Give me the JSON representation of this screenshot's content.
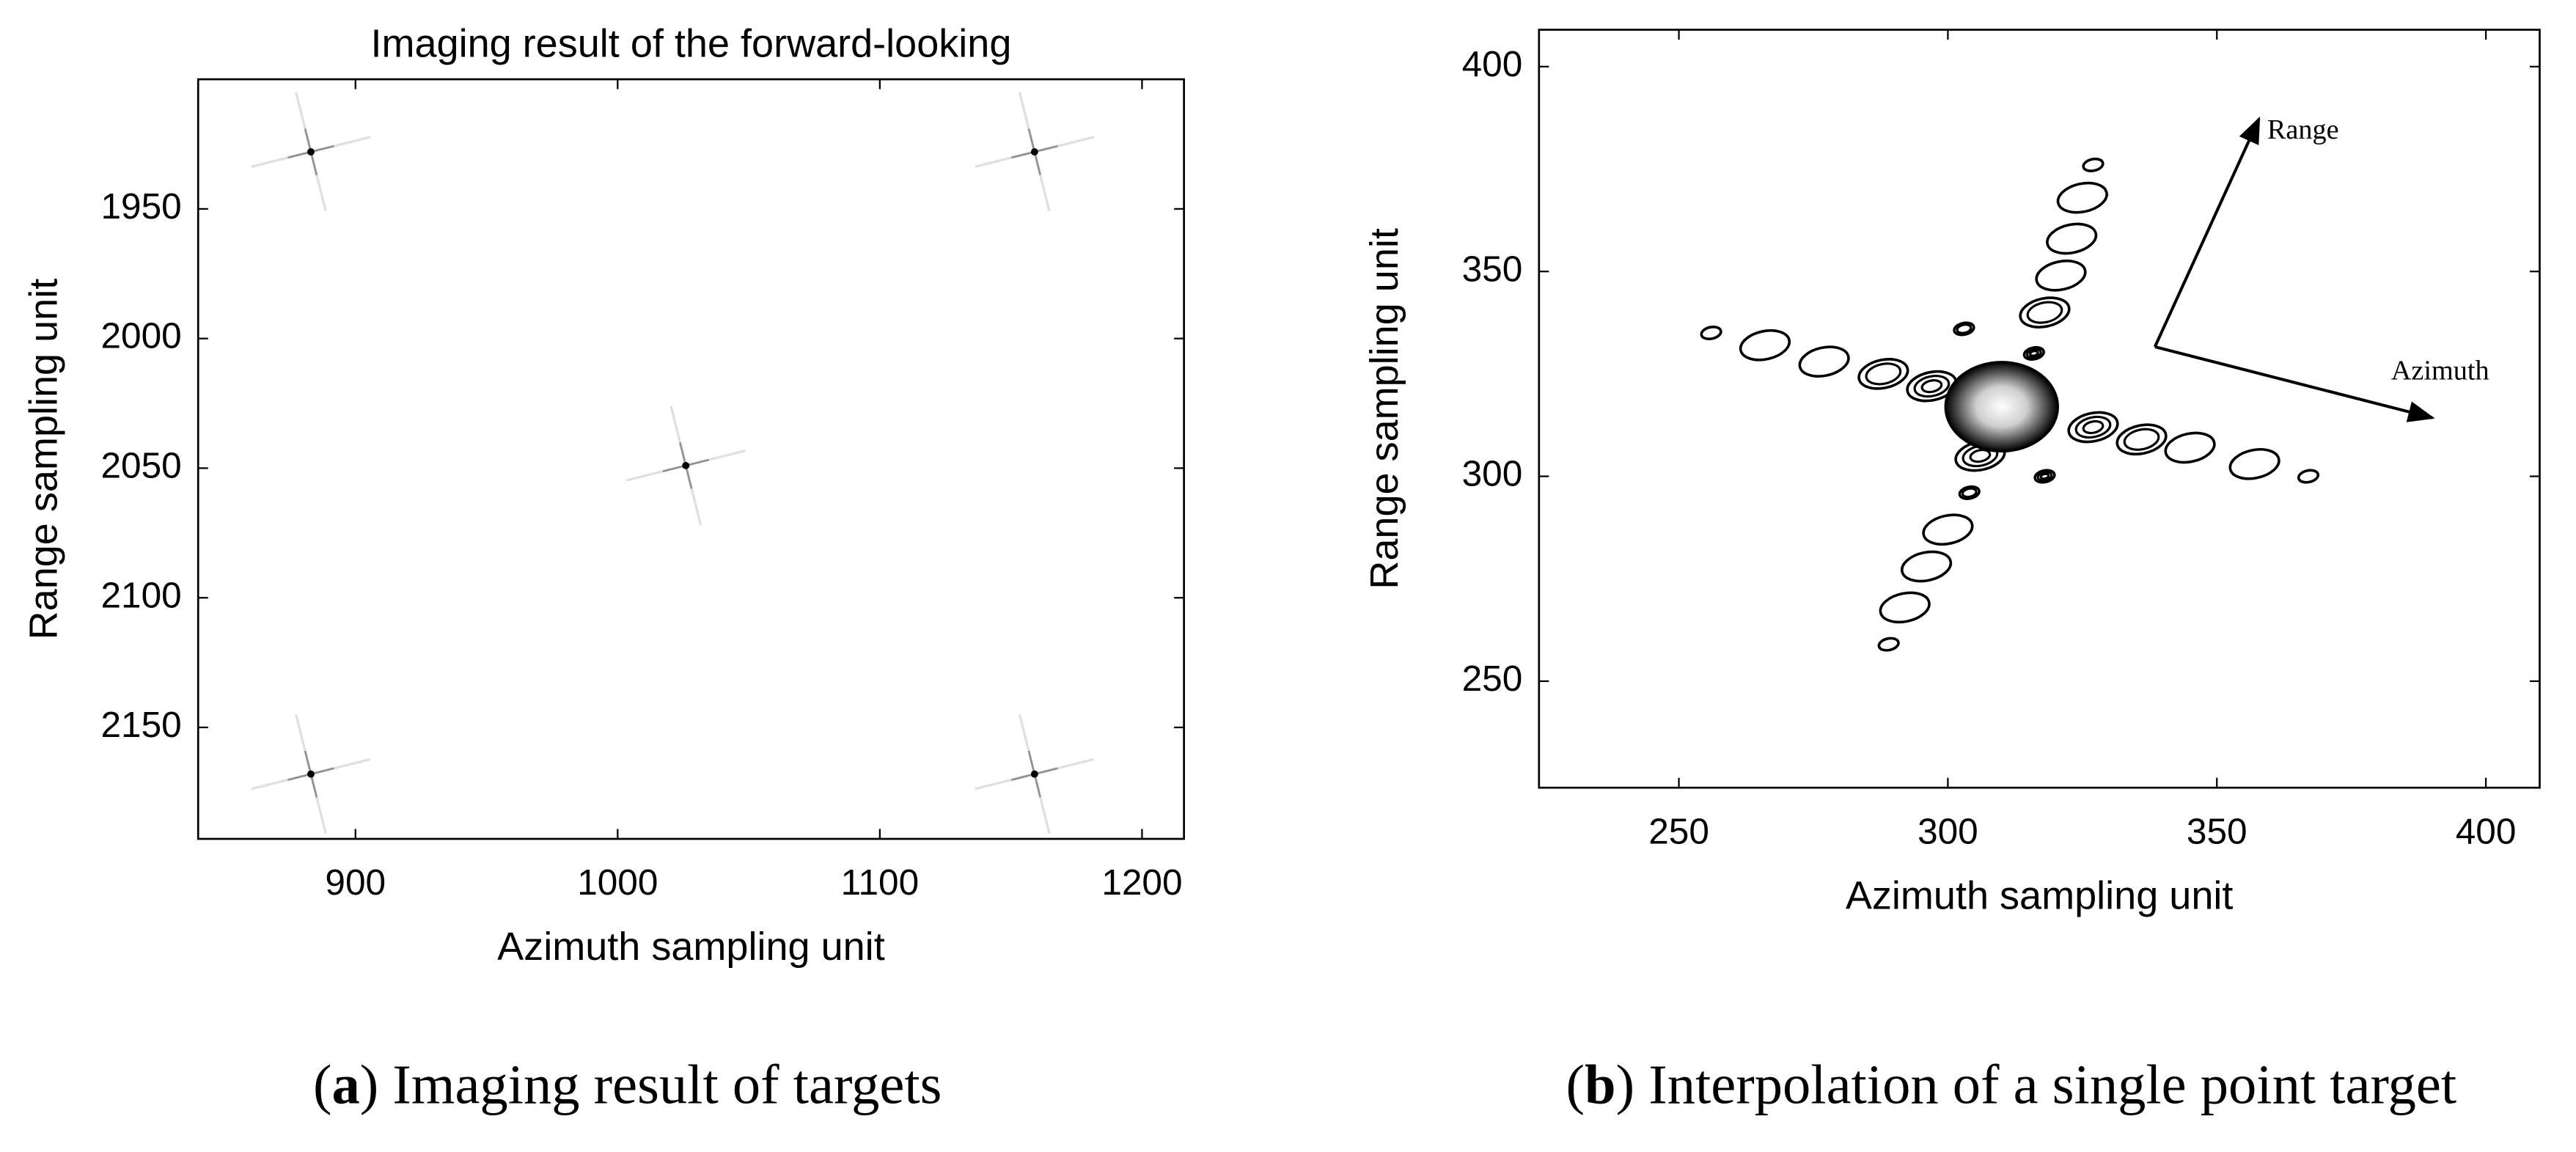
{
  "chart_data": [
    {
      "type": "image",
      "title": "Imaging result of the forward-looking",
      "xlabel": "Azimuth sampling unit",
      "ylabel": "Range sampling unit",
      "xlim": [
        840,
        1216
      ],
      "ylim": [
        1900,
        2193
      ],
      "yreverse": true,
      "xticks": [
        900,
        1000,
        1100,
        1200
      ],
      "yticks": [
        1950,
        2000,
        2050,
        2100,
        2150
      ],
      "x": [
        883,
        1159,
        1026,
        883,
        1159
      ],
      "y": [
        1928,
        1928,
        2049,
        2168,
        2168
      ],
      "color": "#000000",
      "caption": [
        "(",
        "a",
        ") Imaging result of targets"
      ]
    },
    {
      "type": "contour",
      "xlabel": "Azimuth sampling unit",
      "ylabel": "Range sampling unit",
      "xlim": [
        224,
        410
      ],
      "ylim": [
        224,
        409
      ],
      "xticks": [
        250,
        300,
        350,
        400
      ],
      "yticks": [
        250,
        300,
        350,
        400
      ],
      "peak": {
        "x": 310,
        "y": 317
      },
      "x": [
        256,
        266,
        277,
        288,
        297,
        327,
        336,
        345,
        357,
        367,
        289,
        292,
        296,
        300,
        304,
        306,
        316,
        318,
        321,
        323,
        325,
        327,
        303,
        318
      ],
      "y": [
        335,
        332,
        328,
        325,
        322,
        312,
        309,
        307,
        303,
        300,
        259,
        268,
        278,
        287,
        296,
        305,
        330,
        340,
        349,
        358,
        368,
        376,
        336,
        300
      ],
      "color": "#000000",
      "annotations": [
        "Range",
        "Azimuth"
      ],
      "caption": [
        "(",
        "b",
        ") Interpolation of a single point target"
      ]
    }
  ]
}
